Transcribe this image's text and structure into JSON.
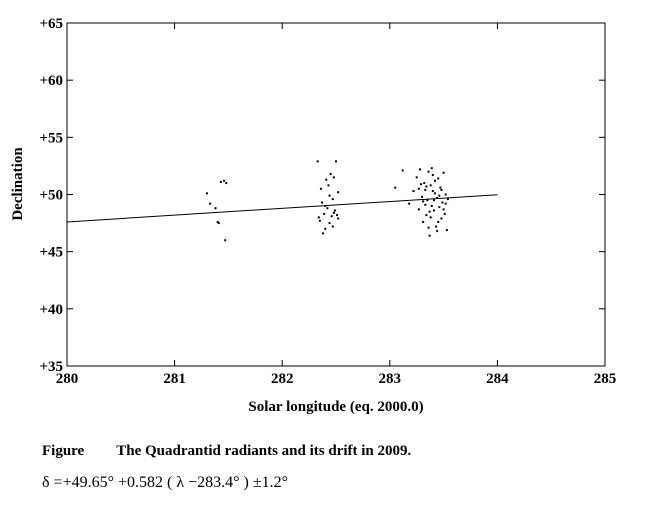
{
  "chart_data": {
    "type": "scatter",
    "title": "",
    "xlabel": "Solar longitude (eq. 2000.0)",
    "ylabel": "Declination",
    "xlim": [
      280,
      285
    ],
    "ylim": [
      35,
      65
    ],
    "x_ticks": [
      280,
      281,
      282,
      283,
      284,
      285
    ],
    "x_tick_labels": [
      "280",
      "281",
      "282",
      "283",
      "284",
      "285"
    ],
    "y_ticks": [
      35,
      40,
      45,
      50,
      55,
      60,
      65
    ],
    "y_tick_labels": [
      "+35",
      "+40",
      "+45",
      "+50",
      "+55",
      "+60",
      "+65"
    ],
    "grid": false,
    "series": [
      {
        "type": "scatter",
        "points": [
          [
            281.3,
            50.1
          ],
          [
            281.33,
            49.2
          ],
          [
            281.38,
            48.8
          ],
          [
            281.4,
            47.6
          ],
          [
            281.41,
            47.5
          ],
          [
            281.43,
            51.1
          ],
          [
            281.46,
            51.2
          ],
          [
            281.48,
            51.0
          ],
          [
            281.47,
            46.0
          ],
          [
            282.33,
            52.9
          ],
          [
            282.34,
            48.0
          ],
          [
            282.35,
            47.7
          ],
          [
            282.36,
            50.5
          ],
          [
            282.37,
            49.3
          ],
          [
            282.38,
            46.6
          ],
          [
            282.39,
            48.3
          ],
          [
            282.4,
            47.0
          ],
          [
            282.41,
            51.3
          ],
          [
            282.42,
            48.8
          ],
          [
            282.43,
            50.8
          ],
          [
            282.44,
            47.5
          ],
          [
            282.45,
            51.8
          ],
          [
            282.46,
            48.1
          ],
          [
            282.47,
            49.6
          ],
          [
            282.47,
            47.2
          ],
          [
            282.48,
            51.5
          ],
          [
            282.49,
            48.6
          ],
          [
            282.5,
            52.9
          ],
          [
            282.51,
            48.2
          ],
          [
            282.52,
            50.2
          ],
          [
            282.52,
            47.9
          ],
          [
            282.44,
            49.9
          ],
          [
            282.4,
            49.0
          ],
          [
            282.48,
            48.4
          ],
          [
            283.05,
            50.6
          ],
          [
            283.12,
            52.1
          ],
          [
            283.18,
            49.2
          ],
          [
            283.22,
            50.3
          ],
          [
            283.25,
            51.5
          ],
          [
            283.27,
            48.7
          ],
          [
            283.28,
            52.2
          ],
          [
            283.3,
            49.8
          ],
          [
            283.31,
            47.6
          ],
          [
            283.32,
            51.0
          ],
          [
            283.33,
            50.4
          ],
          [
            283.34,
            48.2
          ],
          [
            283.35,
            49.5
          ],
          [
            283.36,
            52.0
          ],
          [
            283.37,
            46.4
          ],
          [
            283.38,
            50.8
          ],
          [
            283.39,
            49.0
          ],
          [
            283.4,
            51.7
          ],
          [
            283.41,
            48.6
          ],
          [
            283.42,
            50.1
          ],
          [
            283.43,
            47.2
          ],
          [
            283.44,
            49.7
          ],
          [
            283.45,
            51.4
          ],
          [
            283.46,
            48.9
          ],
          [
            283.47,
            50.6
          ],
          [
            283.48,
            47.9
          ],
          [
            283.49,
            49.3
          ],
          [
            283.5,
            51.9
          ],
          [
            283.51,
            48.3
          ],
          [
            283.52,
            50.0
          ],
          [
            283.53,
            46.9
          ],
          [
            283.54,
            49.6
          ],
          [
            283.29,
            50.9
          ],
          [
            283.33,
            49.1
          ],
          [
            283.38,
            48.0
          ],
          [
            283.42,
            51.2
          ],
          [
            283.46,
            49.9
          ],
          [
            283.5,
            48.7
          ],
          [
            283.36,
            47.1
          ],
          [
            283.44,
            46.8
          ],
          [
            283.4,
            50.3
          ],
          [
            283.34,
            50.7
          ],
          [
            283.48,
            50.4
          ],
          [
            283.31,
            49.4
          ],
          [
            283.52,
            49.2
          ],
          [
            283.27,
            50.5
          ],
          [
            283.39,
            52.3
          ],
          [
            283.45,
            47.6
          ],
          [
            283.41,
            49.5
          ],
          [
            283.37,
            48.5
          ]
        ]
      },
      {
        "type": "line",
        "name": "",
        "points": [
          [
            280.0,
            47.6
          ],
          [
            284.0,
            49.98
          ]
        ]
      }
    ],
    "fit": {
      "intercept": 49.65,
      "slope": 0.582,
      "x0": 283.4,
      "sigma": 1.2
    }
  },
  "caption": {
    "label": "Figure",
    "text": "The Quadrantid radiants and its drift in 2009."
  },
  "formula": {
    "text": "δ =+49.65°  +0.582 ( λ −283.4°  )   ±1.2°"
  }
}
